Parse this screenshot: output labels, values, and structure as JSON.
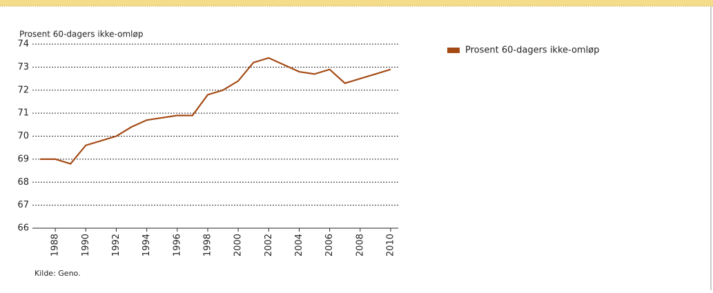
{
  "chart_data": {
    "type": "line",
    "y_label": "Prosent 60-dagers ikke-omløp",
    "source": "Kilde: Geno.",
    "x": [
      1987,
      1988,
      1989,
      1990,
      1991,
      1992,
      1993,
      1994,
      1995,
      1996,
      1997,
      1998,
      1999,
      2000,
      2001,
      2002,
      2003,
      2004,
      2005,
      2006,
      2007,
      2008,
      2009,
      2010
    ],
    "series": [
      {
        "name": "Prosent 60-dagers ikke-omløp",
        "color": "#a44a14",
        "values": [
          69.0,
          69.0,
          68.8,
          69.6,
          69.8,
          70.0,
          70.4,
          70.7,
          70.8,
          70.9,
          70.9,
          71.8,
          72.0,
          72.4,
          73.2,
          73.4,
          73.1,
          72.8,
          72.7,
          72.9,
          72.3,
          72.5,
          72.7,
          72.9
        ]
      }
    ],
    "xlim": [
      1986.5,
      2010.5
    ],
    "xticks": [
      1988,
      1990,
      1992,
      1994,
      1996,
      1998,
      2000,
      2002,
      2004,
      2006,
      2008,
      2010
    ],
    "ylim": [
      66,
      74
    ],
    "yticks": [
      66,
      67,
      68,
      69,
      70,
      71,
      72,
      73,
      74
    ],
    "grid": true,
    "legend": "right"
  }
}
